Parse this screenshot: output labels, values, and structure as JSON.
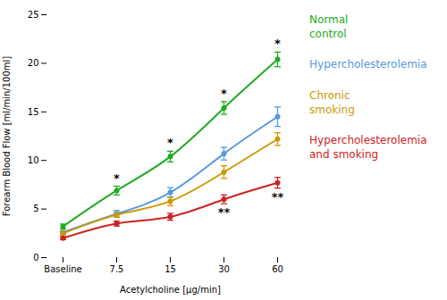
{
  "chart_data": {
    "type": "line",
    "xlabel": "Acetylcholine [µg/min]",
    "ylabel": "Forearm Blood Flow [ml/min/100ml]",
    "categories": [
      "Baseline",
      "7.5",
      "15",
      "30",
      "60"
    ],
    "ylim": [
      0,
      25
    ],
    "yticks": [
      0,
      5,
      10,
      15,
      20,
      25
    ],
    "legend": "right",
    "marker": "circle",
    "series": [
      {
        "name": "Normal\ncontrol",
        "color": "#22aa22",
        "values": [
          3.2,
          6.9,
          10.4,
          15.4,
          20.4
        ],
        "yerr": [
          0.25,
          0.45,
          0.55,
          0.65,
          0.75
        ],
        "annotations": [
          {
            "category": "7.5",
            "text": "*",
            "position": "above"
          },
          {
            "category": "15",
            "text": "*",
            "position": "above"
          },
          {
            "category": "30",
            "text": "*",
            "position": "above"
          },
          {
            "category": "60",
            "text": "*",
            "position": "above"
          }
        ]
      },
      {
        "name": "Hypercholesterolemia",
        "color": "#5599dd",
        "values": [
          2.6,
          4.5,
          6.7,
          10.7,
          14.5
        ],
        "yerr": [
          0.15,
          0.35,
          0.5,
          0.65,
          1.0
        ]
      },
      {
        "name": "Chronic\nsmoking",
        "color": "#cc9900",
        "values": [
          2.5,
          4.4,
          5.8,
          8.8,
          12.2
        ],
        "yerr": [
          0.15,
          0.25,
          0.45,
          0.65,
          0.65
        ]
      },
      {
        "name": "Hypercholesterolemia\nand smoking",
        "color": "#cc2222",
        "values": [
          2.0,
          3.5,
          4.2,
          6.0,
          7.7
        ],
        "yerr": [
          0.15,
          0.25,
          0.35,
          0.45,
          0.55
        ],
        "annotations": [
          {
            "category": "30",
            "text": "**",
            "position": "below"
          },
          {
            "category": "60",
            "text": "**",
            "position": "below"
          }
        ]
      }
    ]
  }
}
